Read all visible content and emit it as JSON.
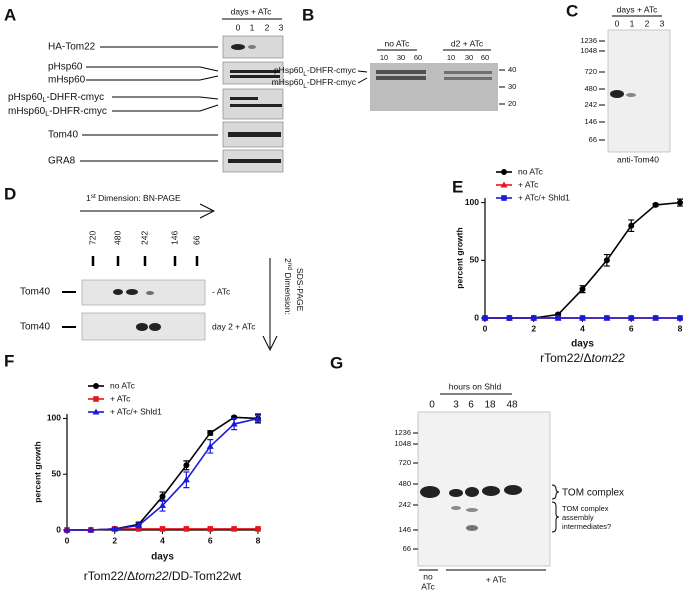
{
  "panel_labels": [
    "A",
    "B",
    "C",
    "D",
    "E",
    "F",
    "G"
  ],
  "panel_a": {
    "header": "days + ATc",
    "lanes": [
      "0",
      "1",
      "2",
      "3"
    ],
    "rows": {
      "ha_tom22": "HA-Tom22",
      "phsp60": "pHsp60",
      "mhsp60": "mHsp60",
      "p_dhfr": {
        "base": "pHsp60",
        "sub": "L",
        "rest": "-DHFR-cmyc"
      },
      "m_dhfr": {
        "base": "mHsp60",
        "sub": "L",
        "rest": "-DHFR-cmyc"
      },
      "tom40": "Tom40",
      "gra8": "GRA8"
    }
  },
  "panel_b": {
    "groups": [
      "no ATc",
      "d2 + ATc"
    ],
    "lanes": [
      "10",
      "30",
      "60",
      "10",
      "30",
      "60"
    ],
    "markers": [
      "40",
      "30",
      "20"
    ],
    "p_dhfr": {
      "base": "pHsp60",
      "sub": "L",
      "rest": "-DHFR-cmyc"
    },
    "m_dhfr": {
      "base": "mHsp60",
      "sub": "L",
      "rest": "-DHFR-cmyc"
    }
  },
  "panel_c": {
    "header": "days + ATc",
    "lanes": [
      "0",
      "1",
      "2",
      "3"
    ],
    "markers": [
      "1236",
      "1048",
      "720",
      "480",
      "242",
      "146",
      "66"
    ],
    "antibody": "anti-Tom40"
  },
  "panel_d": {
    "first_dim": {
      "base": "1",
      "sup": "st",
      "rest": " Dimension: BN-PAGE"
    },
    "markers": [
      "720",
      "480",
      "242",
      "146",
      "66"
    ],
    "rows": [
      "Tom40",
      "Tom40"
    ],
    "conditions": [
      "- ATc",
      "day 2 + ATc"
    ],
    "second_dim": {
      "base": "2",
      "sup": "nd",
      "rest": " Dimension:",
      "line2": "SDS-PAGE"
    }
  },
  "panel_g": {
    "header": "hours on Shld",
    "lanes": [
      "0",
      "3",
      "6",
      "18",
      "48"
    ],
    "markers": [
      "1236",
      "1048",
      "720",
      "480",
      "242",
      "146",
      "66"
    ],
    "tom_complex": "TOM complex",
    "intermediates": [
      "TOM complex",
      "assembly",
      "intermediates?"
    ],
    "no_atc": [
      "no",
      "ATc"
    ],
    "plus_atc": "+ ATc"
  },
  "chart_data": [
    {
      "type": "line",
      "xlabel": "days",
      "ylabel": "percent growth",
      "subtitle": {
        "base": "rTom22/Δ",
        "italic": "tom22"
      },
      "x": [
        0,
        1,
        2,
        3,
        4,
        5,
        6,
        7,
        8
      ],
      "xlim": [
        0,
        8
      ],
      "xticks": [
        0,
        2,
        4,
        6,
        8
      ],
      "ylim": [
        0,
        104
      ],
      "yticks": [
        0,
        50,
        100
      ],
      "legend": "upper left",
      "series": [
        {
          "name": "no ATc",
          "color": "#000000",
          "marker": "circle",
          "values": [
            0,
            0,
            0,
            3,
            25,
            50,
            80,
            98,
            100
          ],
          "errors": [
            0,
            0,
            0,
            1,
            3,
            5,
            5,
            1,
            3
          ]
        },
        {
          "name": "+ ATc",
          "color": "#e8141c",
          "marker": "triangle",
          "values": [
            0,
            0,
            0,
            0,
            0,
            0,
            0,
            0,
            0
          ],
          "errors": [
            0,
            0,
            0,
            0,
            0,
            0,
            0,
            0,
            0
          ]
        },
        {
          "name": "+ ATc/+ Shld1",
          "color": "#1a1adc",
          "marker": "square",
          "values": [
            0,
            0,
            0,
            0,
            0,
            0,
            0,
            0,
            0
          ],
          "errors": [
            0,
            0,
            0,
            0,
            0,
            0,
            0,
            0,
            0
          ]
        }
      ]
    },
    {
      "type": "line",
      "xlabel": "days",
      "ylabel": "percent growth",
      "subtitle": {
        "base": "rTom22/Δ",
        "italic": "tom22",
        "rest": "/DD-Tom22wt"
      },
      "x": [
        0,
        1,
        2,
        3,
        4,
        5,
        6,
        7,
        8
      ],
      "xlim": [
        0,
        8
      ],
      "xticks": [
        0,
        2,
        4,
        6,
        8
      ],
      "ylim": [
        0,
        104
      ],
      "yticks": [
        0,
        50,
        100
      ],
      "legend": "upper left",
      "series": [
        {
          "name": "no ATc",
          "color": "#000000",
          "marker": "circle",
          "values": [
            0,
            0,
            1,
            5,
            30,
            58,
            87,
            101,
            100
          ],
          "errors": [
            0,
            0,
            1,
            2,
            4,
            4,
            2,
            1,
            4
          ]
        },
        {
          "name": "+ ATc",
          "color": "#e8141c",
          "marker": "square",
          "values": [
            0,
            0,
            1,
            1,
            1,
            1,
            1,
            1,
            1
          ],
          "errors": [
            0,
            0,
            0,
            0,
            0,
            0,
            0,
            0,
            0
          ]
        },
        {
          "name": "+ ATc/+ Shld1",
          "color": "#1a1adc",
          "marker": "triangle",
          "values": [
            0,
            0,
            1,
            4,
            22,
            45,
            75,
            95,
            100
          ],
          "errors": [
            0,
            0,
            1,
            2,
            5,
            7,
            6,
            5,
            3
          ]
        }
      ]
    }
  ]
}
